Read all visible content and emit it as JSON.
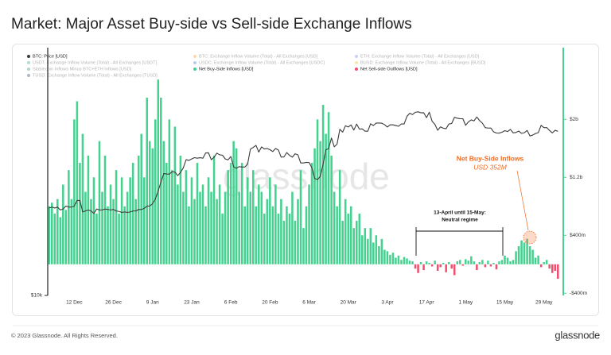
{
  "chart_data": {
    "type": "bar",
    "title": "Market: Major Asset Buy-side vs Sell-side Exchange Inflows",
    "watermark": "glassnode",
    "log_scale": true,
    "ylim": [
      10000,
      45000
    ],
    "yticks": [
      {
        "value": 10000,
        "label": "$10k"
      }
    ],
    "y2lim": [
      -430,
      2990
    ],
    "y2ticks": [
      {
        "value": -400,
        "label": "-$400m"
      },
      {
        "value": 400,
        "label": "$400m"
      },
      {
        "value": 1200,
        "label": "$1.2b"
      },
      {
        "value": 2000,
        "label": "$2b"
      }
    ],
    "categories": [
      null,
      null,
      null,
      null,
      null,
      null,
      null,
      null,
      null,
      "12 Dec",
      null,
      null,
      null,
      null,
      null,
      null,
      null,
      null,
      null,
      null,
      null,
      null,
      null,
      "26 Dec",
      null,
      null,
      null,
      null,
      null,
      null,
      null,
      null,
      null,
      null,
      null,
      null,
      null,
      "9 Jan",
      null,
      null,
      null,
      null,
      null,
      null,
      null,
      null,
      null,
      null,
      null,
      null,
      null,
      "23 Jan",
      null,
      null,
      null,
      null,
      null,
      null,
      null,
      null,
      null,
      null,
      null,
      null,
      null,
      "6 Feb",
      null,
      null,
      null,
      null,
      null,
      null,
      null,
      null,
      null,
      null,
      null,
      null,
      null,
      "20 Feb",
      null,
      null,
      null,
      null,
      null,
      null,
      null,
      null,
      null,
      null,
      null,
      null,
      null,
      "6 Mar",
      null,
      null,
      null,
      null,
      null,
      null,
      null,
      null,
      null,
      null,
      null,
      null,
      null,
      "20 Mar",
      null,
      null,
      null,
      null,
      null,
      null,
      null,
      null,
      null,
      null,
      null,
      null,
      null,
      "3 Apr",
      null,
      null,
      null,
      null,
      null,
      null,
      null,
      null,
      null,
      null,
      null,
      null,
      null,
      "17 Apr",
      null,
      null,
      null,
      null,
      null,
      null,
      null,
      null,
      null,
      null,
      null,
      null,
      null,
      "1 May",
      null,
      null,
      null,
      null,
      null,
      null,
      null,
      null,
      null,
      null,
      null,
      null,
      null,
      "15 May",
      null,
      null,
      null,
      null,
      null,
      null,
      null,
      null,
      null,
      null,
      null,
      null,
      null,
      "29 May",
      null,
      null,
      null,
      null,
      null
    ],
    "series": [
      {
        "name": "BTC: Price [USD]",
        "color": "#3a3a3a",
        "type": "line",
        "axis": "y",
        "values": [
          17000,
          17100,
          17000,
          17100,
          16800,
          16900,
          17200,
          17100,
          17100,
          17200,
          17800,
          17800,
          16600,
          16700,
          16800,
          16700,
          16450,
          16900,
          16800,
          16800,
          16900,
          16850,
          16800,
          16850,
          16700,
          16650,
          16550,
          16600,
          16550,
          16600,
          16700,
          16700,
          16850,
          16850,
          16950,
          17200,
          17200,
          17450,
          17950,
          18850,
          19900,
          20950,
          20900,
          20880,
          21200,
          21150,
          20700,
          21100,
          21700,
          22800,
          22700,
          22900,
          23080,
          23000,
          23070,
          23000,
          23750,
          23770,
          22800,
          23130,
          23720,
          23480,
          23430,
          22900,
          22770,
          23240,
          21830,
          21630,
          21860,
          21800,
          21800,
          22200,
          24300,
          24560,
          24860,
          23870,
          24640,
          24330,
          24390,
          24220,
          23950,
          24400,
          24180,
          23160,
          23180,
          23800,
          23400,
          23150,
          23630,
          23470,
          22350,
          22350,
          22430,
          22410,
          21700,
          20350,
          20190,
          20600,
          22150,
          24200,
          24380,
          26000,
          24650,
          25050,
          27420,
          26950,
          28000,
          27800,
          28150,
          27280,
          28300,
          27450,
          27480,
          27100,
          27100,
          28350,
          28040,
          28470,
          28470,
          28450,
          28200,
          27800,
          28170,
          28170,
          28050,
          27920,
          28330,
          28320,
          29650,
          30220,
          29980,
          30400,
          30480,
          30300,
          30320,
          29430,
          30400,
          28800,
          28250,
          27260,
          27820,
          27600,
          27510,
          28300,
          28400,
          29480,
          29330,
          29240,
          29230,
          28090,
          28680,
          29030,
          28850,
          29540,
          28900,
          28450,
          27700,
          27620,
          27630,
          26990,
          26800,
          26790,
          26930,
          27190,
          27040,
          27400,
          26830,
          26890,
          27120,
          26750,
          26850,
          27230,
          26330,
          26470,
          26720,
          26870,
          28080,
          27700,
          27700,
          27220,
          26820,
          27250,
          27080
        ]
      },
      {
        "name": "BTC: Exchange Inflow Volume (Total) - All Exchanges [USD]",
        "color": "#f7931a",
        "hidden": true
      },
      {
        "name": "ETH: Exchange Inflow Volume (Total) - All Exchanges [USD]",
        "color": "#627eea",
        "hidden": true
      },
      {
        "name": "USDT: Exchange Inflow Volume (Total) - All Exchanges [USDT]",
        "color": "#26a17b",
        "hidden": true
      },
      {
        "name": "USDC: Exchange Inflow Volume (Total) - All Exchanges [USDC]",
        "color": "#2775ca",
        "hidden": true
      },
      {
        "name": "BUSD: Exchange Inflow Volume (Total) - All Exchanges [BUSD]",
        "color": "#f0b90b",
        "hidden": true
      },
      {
        "name": "Stablecoin Inflows Minus BTC+ETH Inflows [USD]",
        "color": "#2e8b57",
        "hidden": true
      },
      {
        "name": "Net Buy-Side Inflows [USD]",
        "color": "#45d18f",
        "axis": "y2",
        "values": [
          800,
          850,
          700,
          900,
          650,
          1100,
          750,
          1300,
          900,
          2000,
          2250,
          1400,
          1800,
          1000,
          1500,
          900,
          1200,
          700,
          1700,
          1000,
          1500,
          800,
          1100,
          900,
          1300,
          700,
          1200,
          800,
          1000,
          1200,
          1400,
          900,
          1500,
          1800,
          1200,
          2300,
          1700,
          1600,
          2000,
          2550,
          2300,
          1700,
          1400,
          2000,
          1300,
          1900,
          1100,
          1500,
          1000,
          1300,
          800,
          1200,
          900,
          1400,
          1000,
          1100,
          800,
          1200,
          1000,
          1500,
          900,
          1100,
          700,
          1000,
          1300,
          1400,
          1700,
          1600,
          1000,
          1400,
          800,
          1200,
          1000,
          1300,
          800,
          1100,
          1000,
          700,
          900,
          1200,
          800,
          1100,
          700,
          900,
          600,
          800,
          700,
          1000,
          600,
          900,
          1300,
          500,
          800,
          1100,
          1400,
          1600,
          2000,
          1700,
          2200,
          1800,
          2100,
          1500,
          1000,
          800,
          1300,
          600,
          900,
          700,
          800,
          500,
          600,
          700,
          400,
          500,
          350,
          500,
          300,
          400,
          250,
          350,
          200,
          180,
          130,
          160,
          90,
          120,
          60,
          100,
          80,
          50,
          40,
          null,
          null,
          30,
          null,
          40,
          20,
          null,
          50,
          null,
          null,
          20,
          null,
          30,
          null,
          null,
          40,
          60,
          null,
          70,
          50,
          110,
          40,
          null,
          30,
          60,
          null,
          50,
          null,
          20,
          null,
          40,
          60,
          120,
          90,
          40,
          60,
          180,
          250,
          330,
          300,
          352,
          250,
          200,
          90,
          120,
          null,
          30,
          60,
          null,
          null,
          null,
          null
        ]
      },
      {
        "name": "Net Sell-side Outflows [USD]",
        "color": "#f0506e",
        "axis": "y2",
        "values": [
          null,
          null,
          null,
          null,
          null,
          null,
          null,
          null,
          null,
          null,
          null,
          null,
          null,
          null,
          null,
          null,
          null,
          null,
          null,
          null,
          null,
          null,
          null,
          null,
          null,
          null,
          null,
          null,
          null,
          null,
          null,
          null,
          null,
          null,
          null,
          null,
          null,
          null,
          null,
          null,
          null,
          null,
          null,
          null,
          null,
          null,
          null,
          null,
          null,
          null,
          null,
          null,
          null,
          null,
          null,
          null,
          null,
          null,
          null,
          null,
          null,
          null,
          null,
          null,
          null,
          null,
          null,
          null,
          null,
          null,
          null,
          null,
          null,
          null,
          null,
          null,
          null,
          null,
          null,
          null,
          null,
          null,
          null,
          null,
          null,
          null,
          null,
          null,
          null,
          null,
          null,
          null,
          null,
          null,
          null,
          null,
          null,
          null,
          null,
          null,
          null,
          null,
          null,
          null,
          null,
          null,
          null,
          null,
          null,
          null,
          null,
          null,
          null,
          null,
          null,
          null,
          null,
          null,
          null,
          null,
          null,
          null,
          null,
          null,
          null,
          null,
          null,
          null,
          null,
          null,
          null,
          -60,
          -120,
          null,
          -80,
          null,
          null,
          -30,
          null,
          -90,
          -40,
          null,
          -110,
          null,
          -60,
          -150,
          null,
          null,
          -20,
          null,
          null,
          null,
          null,
          -80,
          null,
          null,
          -40,
          null,
          -30,
          null,
          -70,
          null,
          null,
          null,
          null,
          null,
          null,
          null,
          null,
          null,
          null,
          null,
          null,
          null,
          null,
          null,
          -40,
          null,
          null,
          -60,
          -120,
          -90,
          -200
        ]
      },
      {
        "name": "TUSD: Exchange Inflow Volume (Total) - All Exchanges [TUSD]",
        "color": "#1a2b6b",
        "hidden": true
      }
    ],
    "annotations": {
      "peak_title": "Net Buy-Side Inflows",
      "peak_value": "USD 352M",
      "regime_title": "13-April until 15-May:",
      "regime_subtitle": "Neutral regime",
      "color": "#f26b21"
    }
  },
  "footer": {
    "copyright": "© 2023 Glassnode. All Rights Reserved.",
    "logo": "glassnode"
  }
}
